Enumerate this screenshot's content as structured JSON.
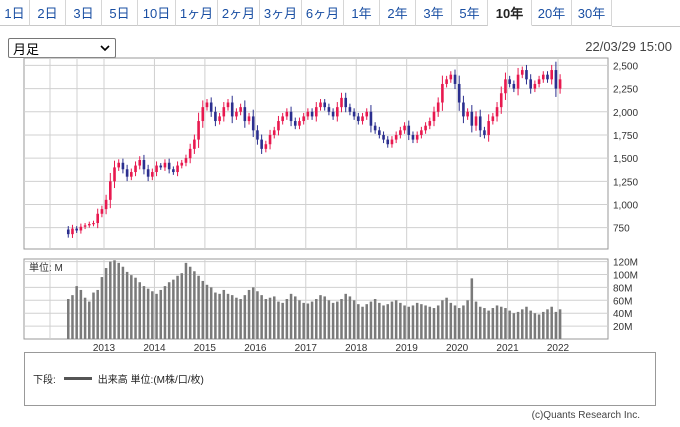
{
  "tabs": [
    {
      "label": "1日"
    },
    {
      "label": "2日"
    },
    {
      "label": "3日"
    },
    {
      "label": "5日"
    },
    {
      "label": "10日"
    },
    {
      "label": "1ヶ月"
    },
    {
      "label": "2ヶ月"
    },
    {
      "label": "3ヶ月"
    },
    {
      "label": "6ヶ月"
    },
    {
      "label": "1年"
    },
    {
      "label": "2年"
    },
    {
      "label": "3年"
    },
    {
      "label": "5年"
    },
    {
      "label": "10年",
      "active": true
    },
    {
      "label": "20年"
    },
    {
      "label": "30年"
    }
  ],
  "period_select": {
    "value": "月足"
  },
  "timestamp": "22/03/29 15:00",
  "volume_unit_label": "単位: M",
  "legend": {
    "prefix": "下段:",
    "series_label": "出来高 単位:(M株/口/枚)"
  },
  "copyright": "(c)Quants Research Inc.",
  "colors": {
    "up": "#e8194f",
    "down": "#2b2f8f",
    "volume": "#7a7a7a",
    "grid": "#d0d0d0"
  },
  "chart_data": [
    {
      "type": "candlestick",
      "interval": "monthly",
      "y_ticks": [
        750,
        1000,
        1250,
        1500,
        1750,
        2000,
        2250,
        2500
      ],
      "ylim": [
        520,
        2580
      ],
      "x_year_labels": [
        "2013",
        "2014",
        "2015",
        "2016",
        "2017",
        "2018",
        "2019",
        "2020",
        "2021",
        "2022"
      ],
      "start_month": "2012-04",
      "close": [
        680,
        740,
        720,
        760,
        775,
        790,
        800,
        900,
        950,
        1050,
        1250,
        1400,
        1450,
        1380,
        1300,
        1350,
        1420,
        1480,
        1380,
        1300,
        1350,
        1420,
        1400,
        1450,
        1380,
        1350,
        1420,
        1450,
        1500,
        1600,
        1700,
        1900,
        2050,
        2100,
        2000,
        1900,
        1950,
        2050,
        2100,
        1950,
        2000,
        2050,
        1900,
        1950,
        1800,
        1700,
        1600,
        1650,
        1750,
        1800,
        1900,
        1950,
        2000,
        1900,
        1850,
        1900,
        1950,
        2000,
        1950,
        2050,
        2100,
        2050,
        2000,
        1950,
        2050,
        2150,
        2050,
        2000,
        1950,
        1900,
        1950,
        2000,
        1850,
        1800,
        1750,
        1700,
        1650,
        1700,
        1750,
        1800,
        1850,
        1750,
        1700,
        1750,
        1800,
        1850,
        1900,
        2000,
        2100,
        2300,
        2350,
        2400,
        2300,
        2100,
        1950,
        2000,
        1850,
        1950,
        1800,
        1750,
        1900,
        1950,
        2050,
        2200,
        2350,
        2300,
        2250,
        2400,
        2450,
        2350,
        2250,
        2300,
        2350,
        2400,
        2350,
        2450,
        2250,
        2350
      ]
    },
    {
      "type": "bar",
      "series": [
        {
          "name": "出来高",
          "values": [
            62,
            68,
            82,
            76,
            64,
            58,
            72,
            76,
            96,
            110,
            120,
            122,
            118,
            112,
            104,
            99,
            95,
            88,
            82,
            78,
            74,
            70,
            76,
            82,
            88,
            92,
            98,
            102,
            118,
            112,
            105,
            98,
            90,
            84,
            80,
            72,
            70,
            76,
            70,
            68,
            64,
            62,
            68,
            76,
            80,
            74,
            68,
            62,
            64,
            66,
            58,
            56,
            62,
            70,
            66,
            60,
            56,
            55,
            58,
            62,
            68,
            66,
            60,
            56,
            58,
            62,
            70,
            66,
            60,
            54,
            50,
            54,
            58,
            62,
            56,
            52,
            54,
            58,
            60,
            56,
            52,
            50,
            52,
            56,
            54,
            52,
            50,
            48,
            52,
            60,
            64,
            56,
            52,
            48,
            52,
            60,
            94,
            58,
            50,
            48,
            44,
            48,
            52,
            50,
            48,
            44,
            40,
            42,
            46,
            50,
            44,
            40,
            38,
            42,
            46,
            50,
            42,
            46
          ]
        }
      ],
      "y_ticks": [
        20,
        40,
        60,
        80,
        100,
        120
      ],
      "y_tick_labels": [
        "20M",
        "40M",
        "60M",
        "80M",
        "100M",
        "120M"
      ],
      "ylim": [
        0,
        124
      ]
    }
  ]
}
